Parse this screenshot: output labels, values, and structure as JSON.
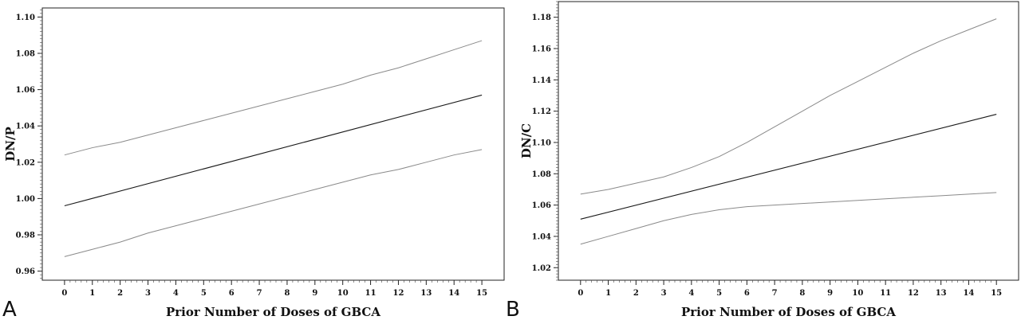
{
  "chart_data": [
    {
      "panel_label": "A",
      "type": "line",
      "xlabel": "Prior Number of Doses of GBCA",
      "ylabel": "DN/P",
      "xlim": [
        -0.8,
        15.8
      ],
      "ylim": [
        0.955,
        1.105
      ],
      "x_ticks": [
        0,
        1,
        2,
        3,
        4,
        5,
        6,
        7,
        8,
        9,
        10,
        11,
        12,
        13,
        14,
        15
      ],
      "y_ticks": [
        0.96,
        0.98,
        1.0,
        1.02,
        1.04,
        1.06,
        1.08,
        1.1
      ],
      "y_tick_labels": [
        "0.96",
        "0.98",
        "1.00",
        "1.02",
        "1.04",
        "1.06",
        "1.08",
        "1.10"
      ],
      "grid": false,
      "series": [
        {
          "role": "upper",
          "color": "#8a8a8a",
          "x": [
            0,
            1,
            2,
            3,
            4,
            5,
            6,
            7,
            8,
            9,
            10,
            11,
            12,
            13,
            14,
            15
          ],
          "y": [
            1.024,
            1.028,
            1.031,
            1.035,
            1.039,
            1.043,
            1.047,
            1.051,
            1.055,
            1.059,
            1.063,
            1.068,
            1.072,
            1.077,
            1.082,
            1.087
          ]
        },
        {
          "role": "estimate",
          "color": "#1a1a1a",
          "x": [
            0,
            15
          ],
          "y": [
            0.996,
            1.057
          ]
        },
        {
          "role": "lower",
          "color": "#8a8a8a",
          "x": [
            0,
            1,
            2,
            3,
            4,
            5,
            6,
            7,
            8,
            9,
            10,
            11,
            12,
            13,
            14,
            15
          ],
          "y": [
            0.968,
            0.972,
            0.976,
            0.981,
            0.985,
            0.989,
            0.993,
            0.997,
            1.001,
            1.005,
            1.009,
            1.013,
            1.016,
            1.02,
            1.024,
            1.027
          ]
        }
      ]
    },
    {
      "panel_label": "B",
      "type": "line",
      "xlabel": "Prior Number of Doses of GBCA",
      "ylabel": "DN/C",
      "xlim": [
        -0.8,
        15.8
      ],
      "ylim": [
        1.012,
        1.19
      ],
      "x_ticks": [
        0,
        1,
        2,
        3,
        4,
        5,
        6,
        7,
        8,
        9,
        10,
        11,
        12,
        13,
        14,
        15
      ],
      "y_ticks": [
        1.02,
        1.04,
        1.06,
        1.08,
        1.1,
        1.12,
        1.14,
        1.16,
        1.18
      ],
      "y_tick_labels": [
        "1.02",
        "1.04",
        "1.06",
        "1.08",
        "1.10",
        "1.12",
        "1.14",
        "1.16",
        "1.18"
      ],
      "grid": false,
      "series": [
        {
          "role": "upper",
          "color": "#8a8a8a",
          "x": [
            0,
            1,
            2,
            3,
            4,
            5,
            6,
            7,
            8,
            9,
            10,
            11,
            12,
            13,
            14,
            15
          ],
          "y": [
            1.067,
            1.07,
            1.074,
            1.078,
            1.084,
            1.091,
            1.1,
            1.11,
            1.12,
            1.13,
            1.139,
            1.148,
            1.157,
            1.165,
            1.172,
            1.179
          ]
        },
        {
          "role": "estimate",
          "color": "#1a1a1a",
          "x": [
            0,
            15
          ],
          "y": [
            1.051,
            1.118
          ]
        },
        {
          "role": "lower",
          "color": "#8a8a8a",
          "x": [
            0,
            1,
            2,
            3,
            4,
            5,
            6,
            7,
            8,
            9,
            10,
            11,
            12,
            13,
            14,
            15
          ],
          "y": [
            1.035,
            1.04,
            1.045,
            1.05,
            1.054,
            1.057,
            1.059,
            1.06,
            1.061,
            1.062,
            1.063,
            1.064,
            1.065,
            1.066,
            1.067,
            1.068
          ]
        }
      ]
    }
  ]
}
